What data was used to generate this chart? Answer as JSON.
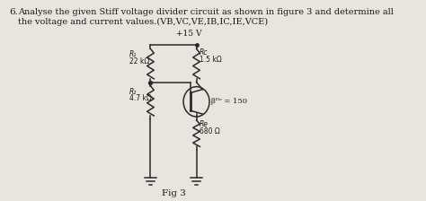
{
  "title_number": "6.",
  "title_text": "Analyse the given Stiff voltage divider circuit as shown in figure 3 and determine all",
  "title_text2": "the voltage and current values.(VB,VC,VE,IB,IC,IE,VCE)",
  "supply_label": "+15 V",
  "R1_label": "R₁",
  "R1_val": "22 kΩ",
  "RC_label": "Rc",
  "RC_val": "1.5 kΩ",
  "R2_label": "R₂",
  "R2_val": "4.7 kΩ",
  "RE_label": "Re",
  "RE_val": "680 Ω",
  "beta_label": "βᴰᶜ = 150",
  "fig_label": "Fig 3",
  "bg_color": "#e8e4de",
  "text_color": "#1a1a1a",
  "wire_color": "#2a2a2a"
}
